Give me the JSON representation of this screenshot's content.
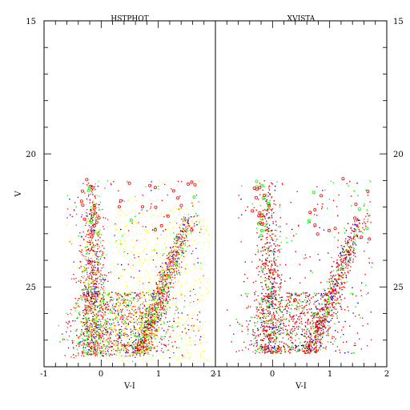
{
  "chart_data": {
    "type": "scatter",
    "panels": [
      {
        "title": "HSTPHOT",
        "xlabel": "V-I",
        "ylabel": "V",
        "xlim": [
          -1,
          2
        ],
        "ylim": [
          28,
          15
        ],
        "x_ticks": [
          "-1",
          "0",
          "1",
          "2"
        ],
        "y_ticks": [
          "15",
          "20",
          "25"
        ],
        "point_colors": [
          "#ff0000",
          "#00ff00",
          "#0000ff",
          "#ffff00",
          "#000000"
        ],
        "features": {
          "main_sequence_turnoff_color": 0.9,
          "red_giant_branch_tip": [
            1.6,
            22.3
          ],
          "blue_plume_color": -0.2,
          "faint_limit": 27.8
        }
      },
      {
        "title": "XVISTA",
        "xlabel": "V-I",
        "ylabel": "",
        "xlim": [
          -1,
          2
        ],
        "ylim": [
          28,
          15
        ],
        "x_ticks": [
          "-1",
          "0",
          "1",
          "2"
        ],
        "y_ticks": [
          "15",
          "20",
          "25"
        ],
        "point_colors": [
          "#ff0000",
          "#00ff00",
          "#0000ff",
          "#000000"
        ],
        "features": {
          "main_sequence_turnoff_color": 0.9,
          "red_giant_branch_tip": [
            1.6,
            22.3
          ],
          "blue_plume_color": -0.1,
          "faint_limit": 27.5
        }
      }
    ],
    "grid": false
  }
}
